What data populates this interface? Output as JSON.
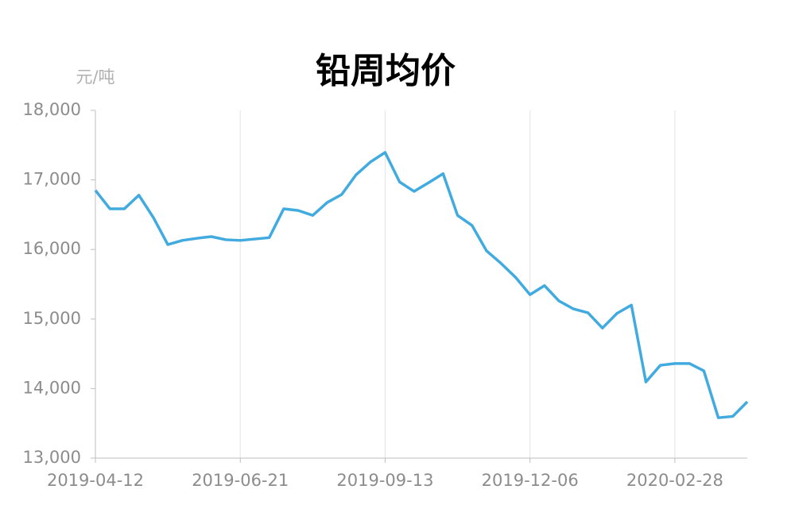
{
  "chart_data": {
    "type": "line",
    "title": "铅周均价",
    "y_axis_label": "元/吨",
    "categories": [
      "2019-04-12",
      null,
      null,
      null,
      null,
      null,
      null,
      null,
      null,
      null,
      "2019-06-21",
      null,
      null,
      null,
      null,
      null,
      null,
      null,
      null,
      null,
      "2019-09-13",
      null,
      null,
      null,
      null,
      null,
      null,
      null,
      null,
      null,
      "2019-12-06",
      null,
      null,
      null,
      null,
      null,
      null,
      null,
      null,
      null,
      "2020-02-28",
      null,
      null,
      null,
      null,
      null
    ],
    "series": [
      {
        "name": "铅周均价",
        "color": "#41abe0",
        "values": [
          16850,
          16585,
          16585,
          16780,
          16460,
          16070,
          16130,
          16160,
          16185,
          16140,
          16130,
          16150,
          16170,
          16585,
          16560,
          16490,
          16675,
          16790,
          17075,
          17260,
          17395,
          16970,
          16835,
          16960,
          17090,
          16490,
          16345,
          15980,
          15800,
          15600,
          15350,
          15480,
          15260,
          15145,
          15090,
          14870,
          15080,
          15200,
          14095,
          14335,
          14360,
          14360,
          14255,
          13580,
          13600,
          13810
        ]
      }
    ],
    "ylim": [
      13000,
      18000
    ],
    "yticks": [
      {
        "value": 13000,
        "label": "13,000"
      },
      {
        "value": 14000,
        "label": "14,000"
      },
      {
        "value": 15000,
        "label": "15,000"
      },
      {
        "value": 16000,
        "label": "16,000"
      },
      {
        "value": 17000,
        "label": "17,000"
      },
      {
        "value": 18000,
        "label": "18,000"
      }
    ],
    "grid": true
  }
}
